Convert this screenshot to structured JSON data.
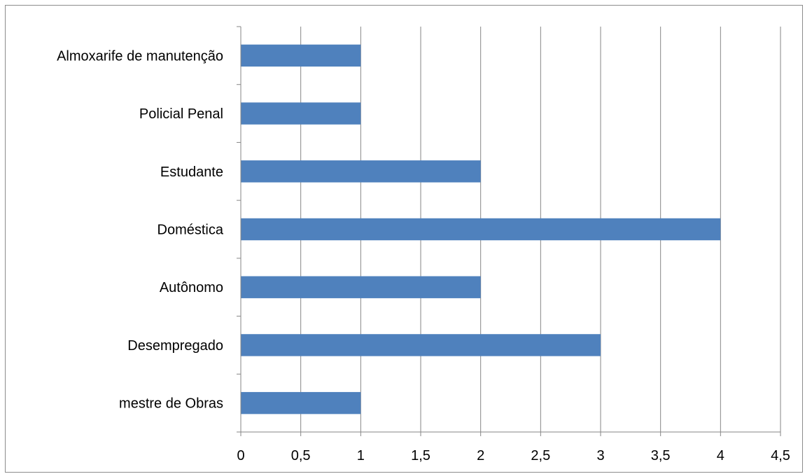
{
  "chart_data": {
    "type": "bar",
    "orientation": "horizontal",
    "categories": [
      "mestre de Obras",
      "Desempregado",
      "Autônomo",
      "Doméstica",
      "Estudante",
      "Policial Penal",
      "Almoxarife de manutenção"
    ],
    "values": [
      1,
      3,
      2,
      4,
      2,
      1,
      1
    ],
    "x_ticks": [
      "0",
      "0,5",
      "1",
      "1,5",
      "2",
      "2,5",
      "3",
      "3,5",
      "4",
      "4,5"
    ],
    "xlim": [
      0,
      4.5
    ],
    "title": "",
    "xlabel": "",
    "ylabel": "",
    "grid": "vertical",
    "legend": "none",
    "bar_color": "#4f81bd",
    "gridline_color": "#868686"
  }
}
